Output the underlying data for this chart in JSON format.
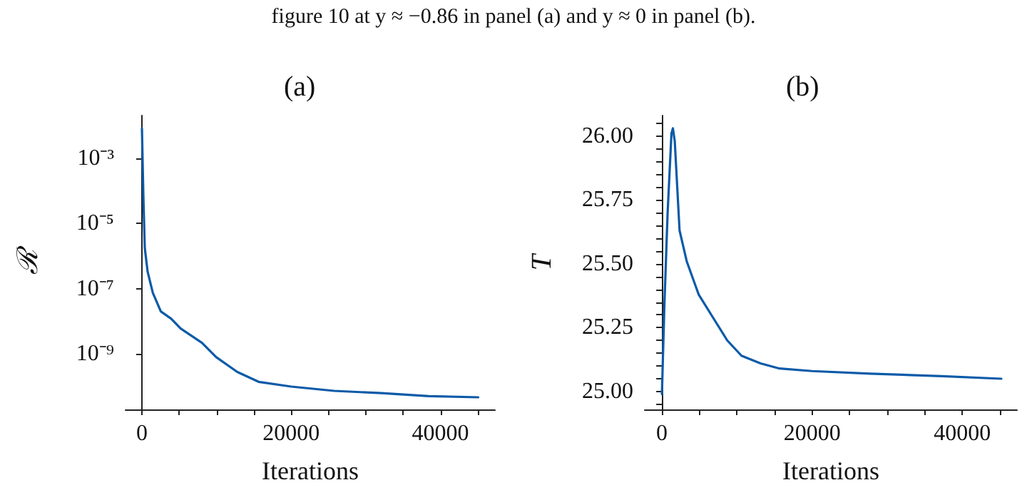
{
  "chart_data": [
    {
      "type": "line",
      "title": "(a)",
      "xlabel": "Iterations",
      "ylabel": "ℛ",
      "log": "y",
      "grid": false,
      "marker": "none",
      "line_style": "solid",
      "annotations": [
        "figure 10 at y ≈ −0.86 in panel (a) and y ≈ 0 in panel (b)."
      ],
      "xlim": [
        -2200,
        47300
      ],
      "xticks": [
        0,
        {
          "value": 5000,
          "label": null
        },
        {
          "value": 10000,
          "label": null
        },
        {
          "value": 15000,
          "label": null
        },
        20000,
        {
          "value": 25000,
          "label": null
        },
        {
          "value": 30000,
          "label": null
        },
        {
          "value": 35000,
          "label": null
        },
        40000,
        {
          "value": 45000,
          "label": null
        }
      ],
      "ylim": [
        2e-11,
        0.02
      ],
      "yticks": [
        {
          "value": 1e-09,
          "label": "10⁻⁹"
        },
        {
          "value": 1e-07,
          "label": "10⁻⁷"
        },
        {
          "value": 1e-05,
          "label": "10⁻⁵"
        },
        {
          "value": 0.001,
          "label": "10⁻³"
        }
      ],
      "series": [
        {
          "color": "#0b5aa8",
          "x": [
            0,
            190,
            380,
            760,
            1460,
            2530,
            3920,
            5190,
            8040,
            9940,
            12780,
            15630,
            20000,
            25760,
            32090,
            38420,
            45060
          ],
          "values": [
            0.008,
            7e-05,
            1.8e-06,
            3.3e-07,
            7.4e-08,
            2e-08,
            1.2e-08,
            6e-09,
            2.2e-09,
            8e-10,
            2.8e-10,
            1.4e-10,
            1e-10,
            7.4e-11,
            6.3e-11,
            5.1e-11,
            4.7e-11
          ]
        }
      ]
    },
    {
      "type": "line",
      "title": "(b)",
      "xlabel": "Iterations",
      "ylabel": "T",
      "grid": false,
      "marker": "none",
      "line_style": "solid",
      "xlim": [
        -2290,
        47300
      ],
      "xticks": [
        0,
        {
          "value": 5000,
          "label": null
        },
        {
          "value": 10000,
          "label": null
        },
        {
          "value": 15000,
          "label": null
        },
        20000,
        {
          "value": 25000,
          "label": null
        },
        {
          "value": 30000,
          "label": null
        },
        {
          "value": 35000,
          "label": null
        },
        40000,
        {
          "value": 45000,
          "label": null
        }
      ],
      "ylim": [
        24.93,
        26.08
      ],
      "yticks": [
        {
          "value": 24.95,
          "label": null
        },
        {
          "value": 25,
          "label": "25.00"
        },
        {
          "value": 25.05,
          "label": null
        },
        {
          "value": 25.1,
          "label": null
        },
        {
          "value": 25.15,
          "label": null
        },
        {
          "value": 25.2,
          "label": null
        },
        {
          "value": 25.25,
          "label": "25.25"
        },
        {
          "value": 25.3,
          "label": null
        },
        {
          "value": 25.35,
          "label": null
        },
        {
          "value": 25.4,
          "label": null
        },
        {
          "value": 25.45,
          "label": null
        },
        {
          "value": 25.5,
          "label": "25.50"
        },
        {
          "value": 25.55,
          "label": null
        },
        {
          "value": 25.6,
          "label": null
        },
        {
          "value": 25.65,
          "label": null
        },
        {
          "value": 25.7,
          "label": null
        },
        {
          "value": 25.75,
          "label": "25.75"
        },
        {
          "value": 25.8,
          "label": null
        },
        {
          "value": 25.85,
          "label": null
        },
        {
          "value": 25.9,
          "label": null
        },
        {
          "value": 25.95,
          "label": null
        },
        {
          "value": 26,
          "label": "26.00"
        },
        {
          "value": 26.05,
          "label": null
        }
      ],
      "series": [
        {
          "color": "#0b5aa8",
          "x": [
            0,
            320,
            760,
            1270,
            1460,
            1710,
            2350,
            3300,
            4890,
            6790,
            8700,
            10600,
            13140,
            15680,
            20000,
            27750,
            37270,
            45210
          ],
          "values": [
            24.99,
            25.33,
            25.7,
            26.01,
            26.03,
            25.98,
            25.63,
            25.51,
            25.38,
            25.29,
            25.2,
            25.14,
            25.11,
            25.09,
            25.08,
            25.07,
            25.06,
            25.05
          ]
        }
      ]
    }
  ]
}
